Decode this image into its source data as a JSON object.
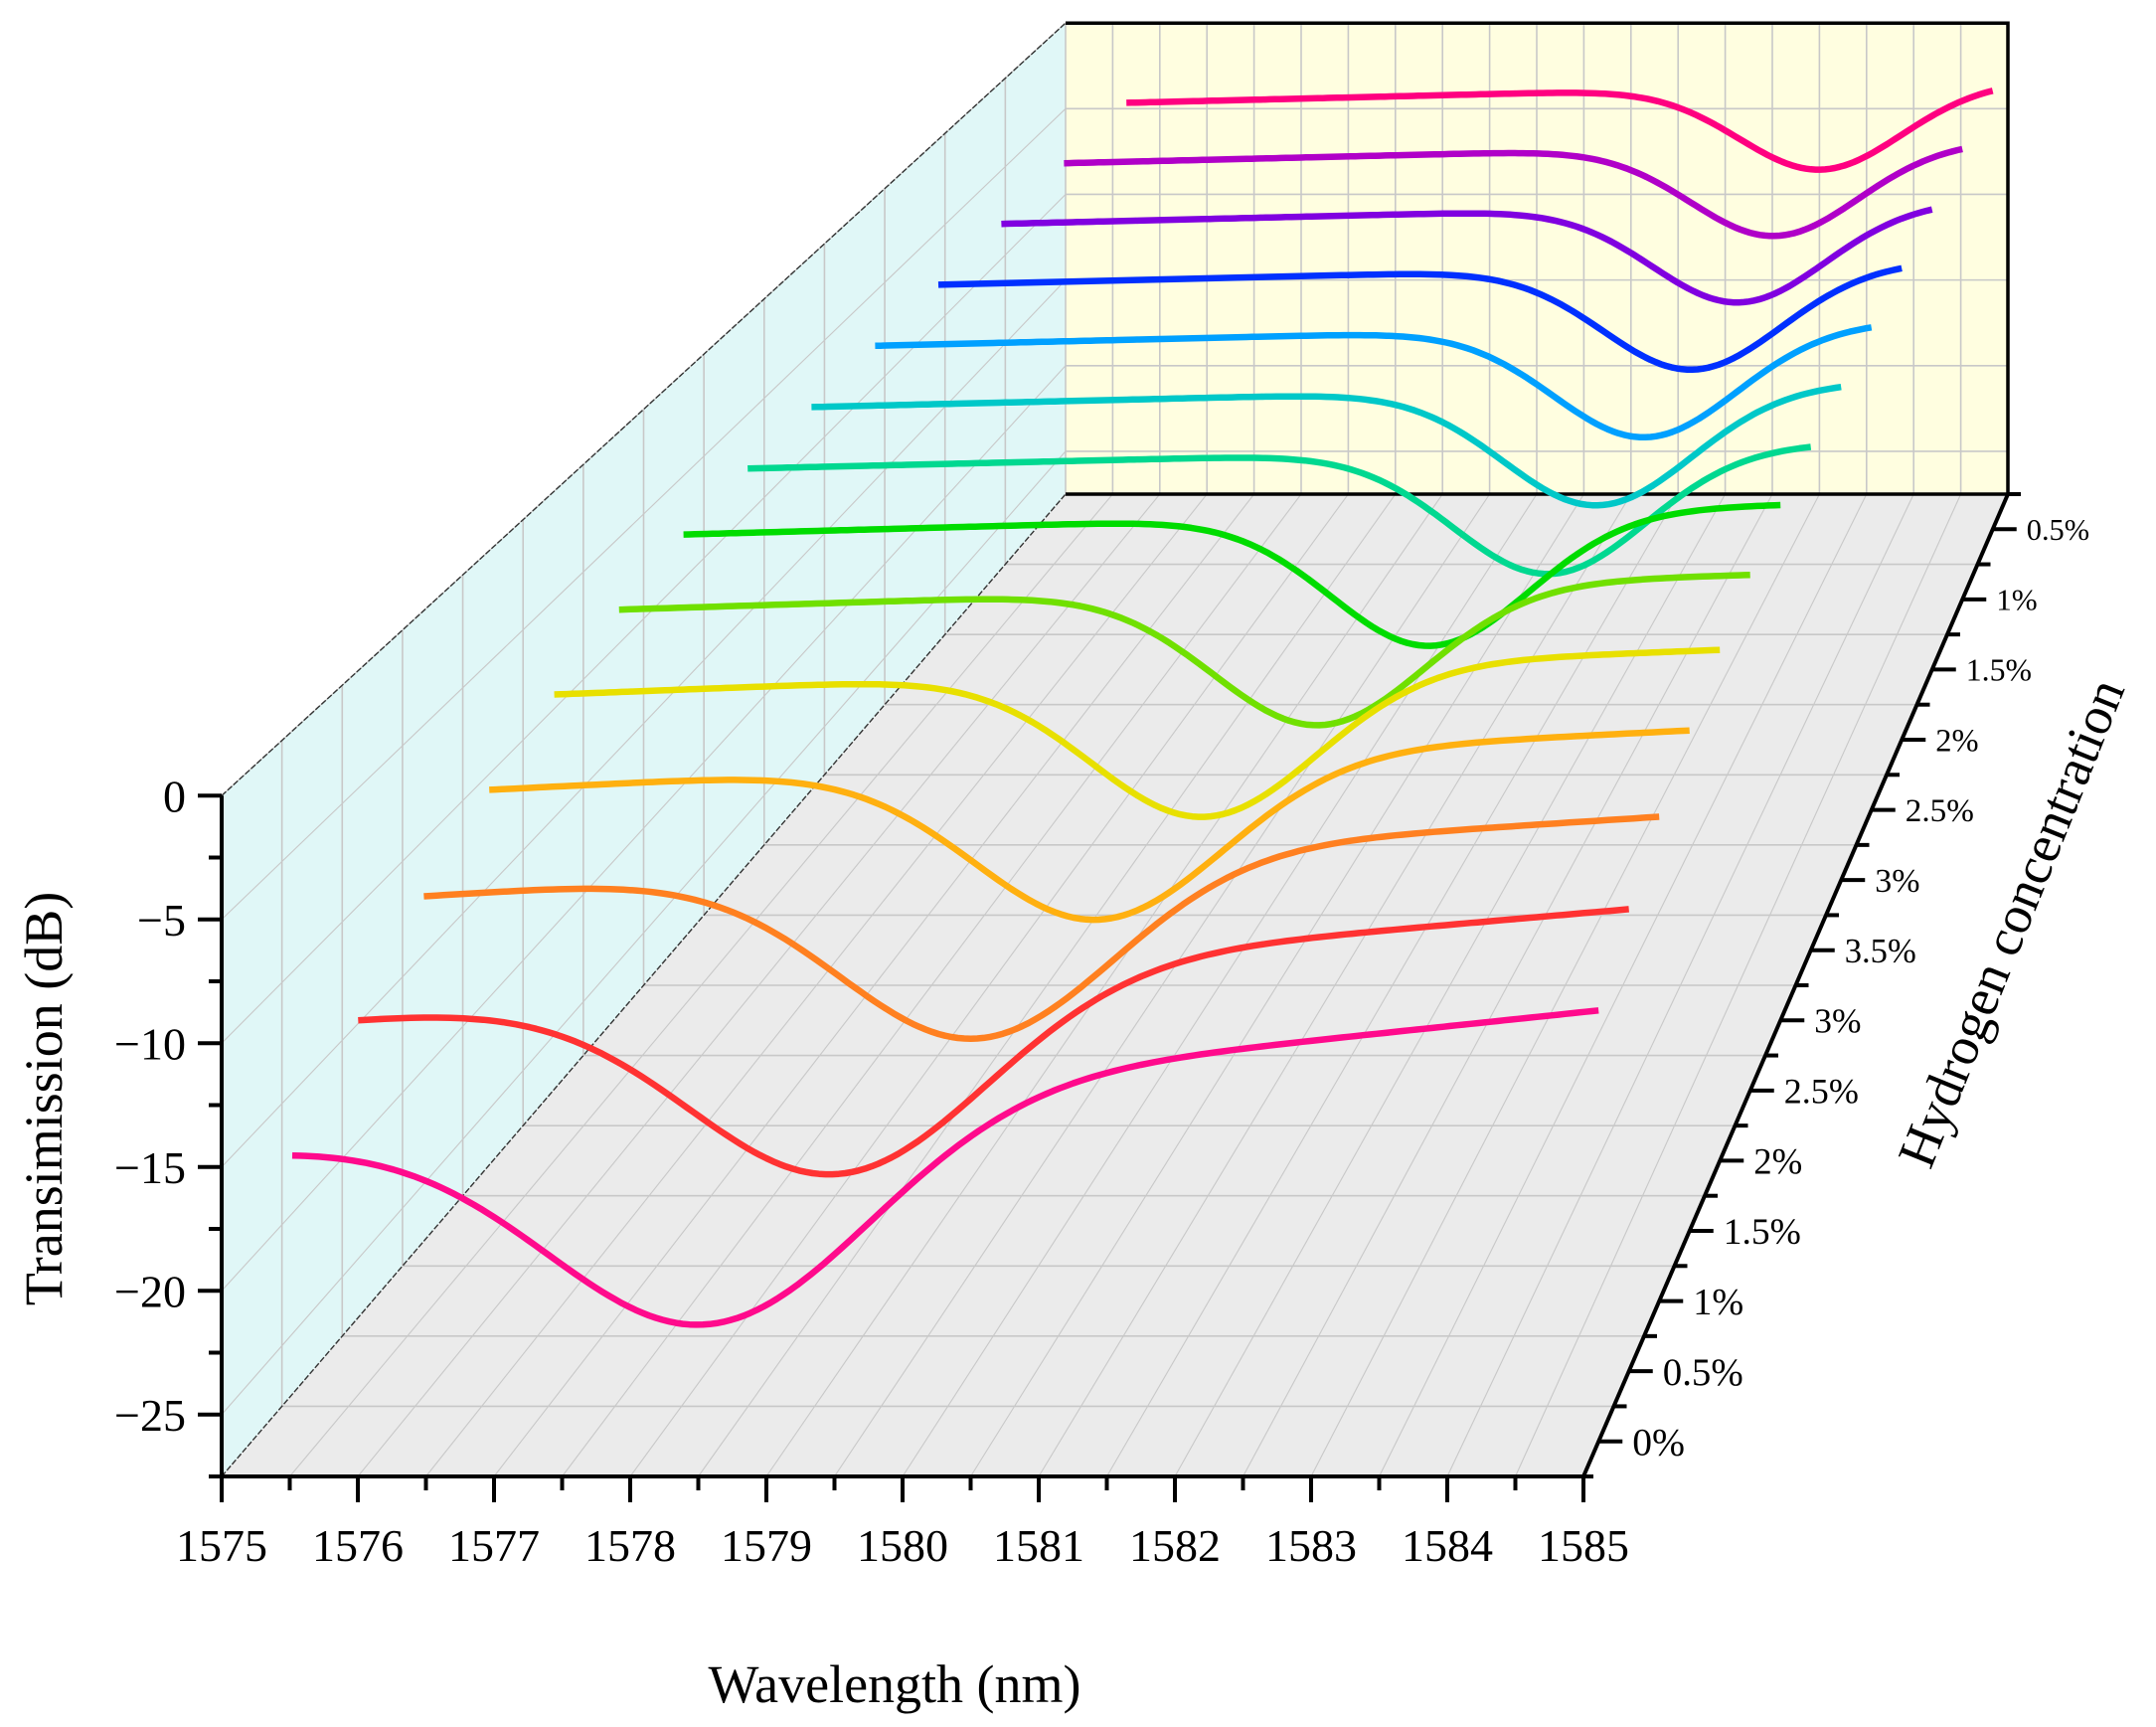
{
  "chart_data": {
    "type": "line",
    "subtype": "3d-waterfall",
    "title": "",
    "xlabel": "Wavelength (nm)",
    "ylabel": "Transimission (dB)",
    "zlabel": "Hydrogen concentration",
    "xlim": [
      1575,
      1585
    ],
    "ylim": [
      -27.5,
      0
    ],
    "x_ticks": [
      "1575",
      "1576",
      "1577",
      "1578",
      "1579",
      "1580",
      "1581",
      "1582",
      "1583",
      "1584",
      "1585"
    ],
    "y_ticks": [
      "0",
      "−5",
      "−10",
      "−15",
      "−20",
      "−25"
    ],
    "y_tick_values": [
      0,
      -5,
      -10,
      -15,
      -20,
      -25
    ],
    "z_ticks": [
      "0%",
      "0.5%",
      "1%",
      "1.5%",
      "2%",
      "2.5%",
      "3%",
      "3.5%",
      "3%",
      "2.5%",
      "2%",
      "1.5%",
      "1%",
      "0.5%"
    ],
    "grid": true,
    "legend": "none",
    "series": [
      {
        "name": "0%",
        "color": "#ff0a8c",
        "start": -15.5,
        "end": -9.9,
        "dip_center": 1578.4,
        "dip_depth": 9.0,
        "dip_width": 1.7,
        "min": -22.2
      },
      {
        "name": "0.5%",
        "color": "#ff3232",
        "start": -12.8,
        "end": -8.2,
        "dip_center": 1579.0,
        "dip_depth": 8.2,
        "dip_width": 1.6,
        "min": -19.5
      },
      {
        "name": "1%",
        "color": "#ff8020",
        "start": -10.2,
        "end": -6.8,
        "dip_center": 1579.7,
        "dip_depth": 7.6,
        "dip_width": 1.5,
        "min": -16.8
      },
      {
        "name": "1.5%",
        "color": "#ffb010",
        "start": -8.2,
        "end": -5.6,
        "dip_center": 1580.3,
        "dip_depth": 7.0,
        "dip_width": 1.4,
        "min": -14.2
      },
      {
        "name": "2%",
        "color": "#e8e000",
        "start": -6.6,
        "end": -4.6,
        "dip_center": 1580.8,
        "dip_depth": 6.6,
        "dip_width": 1.3,
        "min": -12.0
      },
      {
        "name": "2.5%",
        "color": "#70e000",
        "start": -5.4,
        "end": -3.8,
        "dip_center": 1581.4,
        "dip_depth": 6.3,
        "dip_width": 1.25,
        "min": -10.2
      },
      {
        "name": "3%",
        "color": "#00dc00",
        "start": -4.6,
        "end": -3.2,
        "dip_center": 1582.0,
        "dip_depth": 6.2,
        "dip_width": 1.2,
        "min": -9.0
      },
      {
        "name": "3.5%",
        "color": "#00d890",
        "start": -4.2,
        "end": -3.0,
        "dip_center": 1582.7,
        "dip_depth": 6.0,
        "dip_width": 1.2,
        "min": -8.5
      },
      {
        "name": "3%",
        "color": "#00c8c8",
        "start": -4.0,
        "end": -2.8,
        "dip_center": 1582.8,
        "dip_depth": 5.8,
        "dip_width": 1.2,
        "min": -8.3
      },
      {
        "name": "2.5%",
        "color": "#00a0ff",
        "start": -3.8,
        "end": -2.6,
        "dip_center": 1582.9,
        "dip_depth": 5.6,
        "dip_width": 1.2,
        "min": -8.0
      },
      {
        "name": "2%",
        "color": "#0030ff",
        "start": -3.6,
        "end": -2.4,
        "dip_center": 1583.0,
        "dip_depth": 5.4,
        "dip_width": 1.2,
        "min": -7.8
      },
      {
        "name": "1.5%",
        "color": "#8000e0",
        "start": -3.4,
        "end": -2.2,
        "dip_center": 1583.1,
        "dip_depth": 5.2,
        "dip_width": 1.2,
        "min": -7.6
      },
      {
        "name": "1%",
        "color": "#b000c8",
        "start": -3.2,
        "end": -2.0,
        "dip_center": 1583.1,
        "dip_depth": 5.0,
        "dip_width": 1.2,
        "min": -7.4
      },
      {
        "name": "0.5%",
        "color": "#ff0080",
        "start": -3.0,
        "end": -1.8,
        "dip_center": 1583.2,
        "dip_depth": 4.8,
        "dip_width": 1.2,
        "min": -7.2
      }
    ]
  },
  "colors": {
    "left_wall": "#e0f7f7",
    "back_wall": "#fffee0",
    "floor": "#ebebeb",
    "grid": "#c8c8c8",
    "axis": "#000000"
  }
}
